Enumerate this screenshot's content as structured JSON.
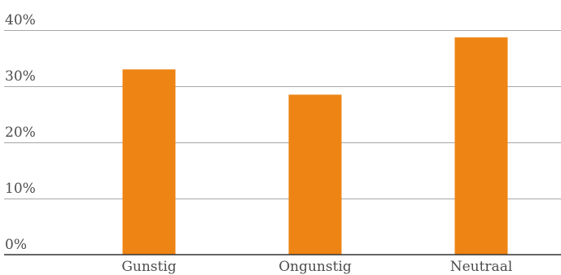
{
  "chart_data": {
    "type": "bar",
    "title": "",
    "xlabel": "",
    "ylabel": "",
    "categories": [
      "Gunstig",
      "Ongunstig",
      "Neutraal"
    ],
    "values": [
      33,
      28.5,
      38.7
    ],
    "unit": "%",
    "ylim": [
      0,
      40
    ],
    "yticks": [
      0,
      10,
      20,
      30,
      40
    ],
    "ytick_labels": [
      "0%",
      "10%",
      "20%",
      "30%",
      "40%"
    ],
    "grid": true,
    "legend": "none",
    "colors": {
      "bar": "#ee8414",
      "grid": "#a6a6a6",
      "axis": "#333333",
      "text": "#4d4d4d"
    }
  }
}
